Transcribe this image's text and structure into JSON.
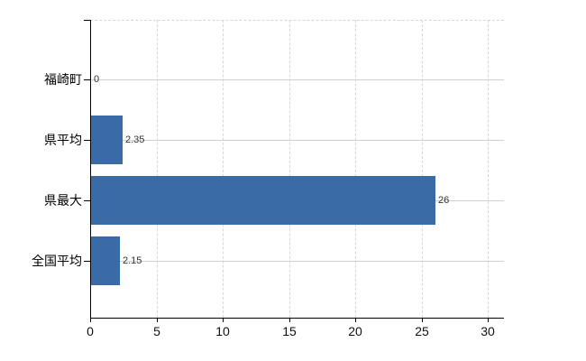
{
  "chart_data": {
    "type": "bar",
    "orientation": "horizontal",
    "title": "",
    "categories": [
      "福崎町",
      "県平均",
      "県最大",
      "全国平均"
    ],
    "values": [
      0,
      2.35,
      26,
      2.15
    ],
    "value_labels": [
      "0",
      "2.35",
      "26",
      "2.15"
    ],
    "x_tick_labels": [
      "0",
      "5",
      "10",
      "15",
      "20",
      "25",
      "30"
    ],
    "x_tick_values": [
      0,
      5,
      10,
      15,
      20,
      25,
      30
    ],
    "xlim": [
      0,
      31.2
    ],
    "grid": true,
    "legend": false,
    "colors": {
      "bar": "#3a6ba6",
      "axis": "#000000",
      "h_gridline": "#ccd4cc",
      "v_gridline": "#d6d6d6",
      "plot_top_border": "#d6d6d6",
      "category_label": "#000000",
      "value_label": "#333333",
      "tick_label": "#111111",
      "background": "#ffffff"
    }
  }
}
